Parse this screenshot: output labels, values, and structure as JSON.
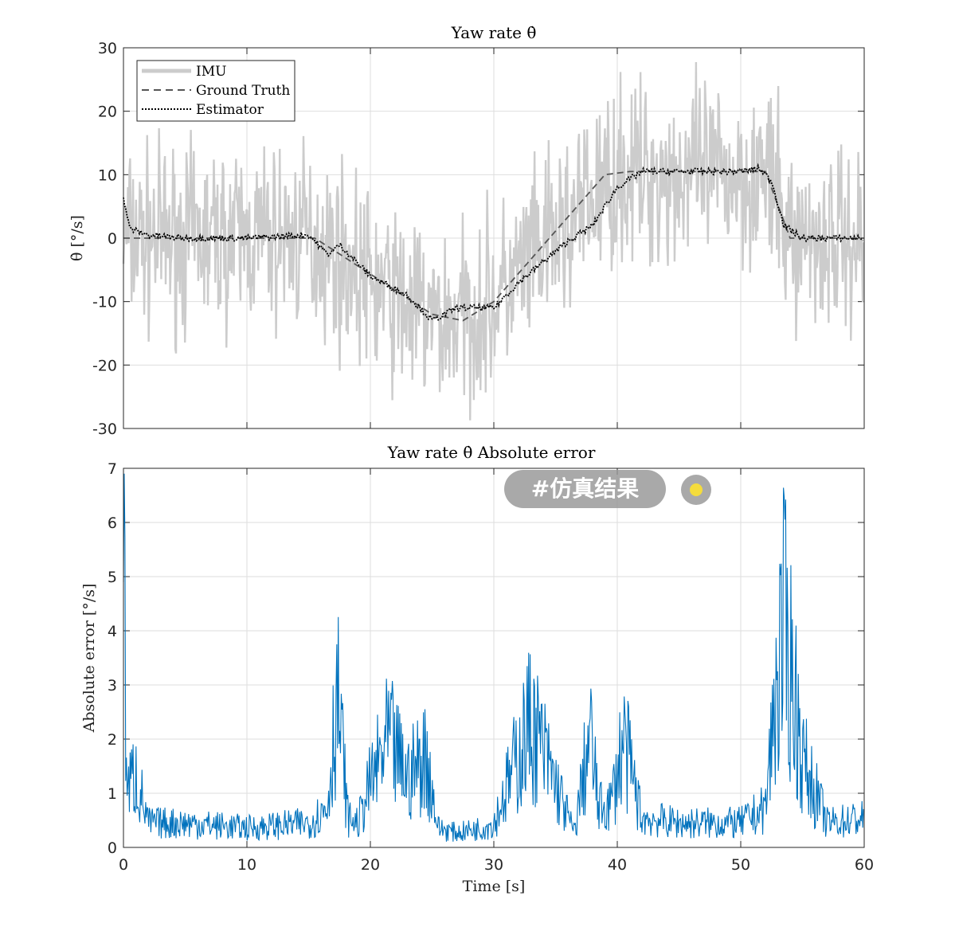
{
  "overlay": {
    "badge_text": "#仿真结果",
    "dot_color": "#f4dc3c"
  },
  "chart_data": [
    {
      "type": "line",
      "title": "Yaw rate θ̇",
      "xlabel": "",
      "ylabel": "θ̇ [°/s]",
      "xlim": [
        0,
        60
      ],
      "ylim": [
        -30,
        30
      ],
      "xticks": [
        0,
        10,
        20,
        30,
        40,
        50,
        60
      ],
      "yticks": [
        30,
        20,
        10,
        0,
        -10,
        -20,
        -30
      ],
      "ytick_labels": [
        "30",
        "20",
        "10",
        "0",
        "-10",
        "-20",
        "-30"
      ],
      "grid": true,
      "legend_position": "top-left",
      "series": [
        {
          "name": "IMU",
          "style": "solid",
          "color": "#cccccc",
          "note": "noisy measurement around ground truth, roughly ±10 °/s",
          "x": [
            0,
            5,
            10,
            15,
            17,
            20,
            25,
            27,
            30,
            35,
            40,
            45,
            52,
            54,
            60
          ],
          "values": [
            0,
            0,
            0,
            0,
            -2,
            -7,
            -13,
            -13,
            -10,
            0,
            10,
            10,
            10,
            0,
            0
          ]
        },
        {
          "name": "Ground Truth",
          "style": "dashed",
          "color": "#555555",
          "x": [
            0,
            15.5,
            17.5,
            25,
            27.5,
            30,
            39,
            41,
            52,
            54,
            60
          ],
          "values": [
            0,
            0,
            -2.5,
            -12,
            -13,
            -10,
            10,
            10.5,
            10.5,
            0,
            0
          ]
        },
        {
          "name": "Estimator",
          "style": "dotted",
          "color": "#000000",
          "x": [
            0,
            0.5,
            2,
            5,
            10,
            15,
            16.5,
            17,
            17.5,
            20,
            23,
            25,
            27,
            29,
            30,
            32,
            36,
            38,
            40,
            42,
            46,
            50,
            51.5,
            52.5,
            53.5,
            55,
            58,
            60
          ],
          "values": [
            6.5,
            1.5,
            0.5,
            0,
            0,
            0.5,
            -2.5,
            -2,
            -1,
            -6,
            -9,
            -13,
            -11,
            -11,
            -11,
            -7,
            -0.5,
            2,
            8,
            10.5,
            10.5,
            10.5,
            11,
            9,
            2,
            0,
            0,
            0
          ]
        }
      ]
    },
    {
      "type": "line",
      "title": "Yaw rate θ̇ Absolute error",
      "xlabel": "Time [s]",
      "ylabel": "Absolute error [°/s]",
      "xlim": [
        0,
        60
      ],
      "ylim": [
        0,
        7
      ],
      "xticks": [
        0,
        10,
        20,
        30,
        40,
        50,
        60
      ],
      "yticks": [
        7,
        6,
        5,
        4,
        3,
        2,
        1,
        0
      ],
      "grid": true,
      "series": [
        {
          "name": "Absolute error",
          "style": "solid",
          "color": "#0072bd",
          "x": [
            0,
            0.3,
            1,
            2,
            5,
            10,
            15,
            16.5,
            17.3,
            18.2,
            19,
            20,
            21.5,
            23,
            24.5,
            25.5,
            27,
            29,
            30,
            31,
            33,
            35,
            36.5,
            37.8,
            38.5,
            39.5,
            40.5,
            42,
            45,
            50,
            52,
            53,
            53.5,
            54.2,
            55,
            57,
            60
          ],
          "values": [
            6.5,
            1.2,
            1.5,
            0.5,
            0.5,
            0.4,
            0.5,
            0.8,
            3.2,
            0.6,
            0.5,
            1.3,
            2.2,
            1.4,
            1.9,
            0.4,
            0.3,
            0.4,
            0.5,
            1.2,
            2.6,
            1.3,
            0.3,
            2.3,
            0.8,
            0.9,
            2.2,
            0.6,
            0.5,
            0.5,
            0.8,
            3.6,
            4.5,
            3.5,
            1.8,
            0.5,
            0.6
          ]
        }
      ]
    }
  ]
}
